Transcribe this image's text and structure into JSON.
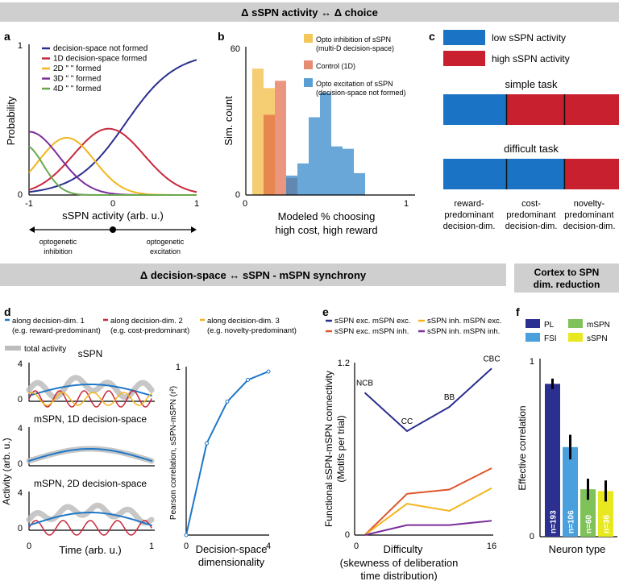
{
  "banners": {
    "top": "Δ sSPN activity ↔ Δ choice",
    "middle": "Δ decision-space ↔  sSPN - mSPN synchrony",
    "right": [
      "Cortex to SPN",
      "dim. reduction"
    ]
  },
  "colors": {
    "banner": "#cfcfcf",
    "navy": "#2b2f8f",
    "red": "#c8283c",
    "yellow": "#f2b51e",
    "purple": "#7b2e9c",
    "green": "#6aa84f",
    "blue": "#1f78c8",
    "orange": "#e0552a",
    "gray": "#bdbdbd",
    "lowBlue": "#1a73c4",
    "highRed": "#c8202f",
    "light_blue": "#4aa0dc",
    "f_green": "#7fc25a",
    "f_yellow": "#e8e820"
  },
  "panel_labels": [
    "a",
    "b",
    "c",
    "d",
    "e",
    "f"
  ],
  "panel_a": {
    "ylabel": "Probability",
    "xlabel": "sSPN activity (arb. u.)",
    "xticks": [
      "-1",
      "0",
      "1"
    ],
    "yticks": [
      "0",
      "1"
    ],
    "legend": [
      {
        "text": "decision-space not formed",
        "color": "navy"
      },
      {
        "text": "1D decision-space formed",
        "color": "red"
      },
      {
        "text": "2D    \"    \"    formed",
        "color": "yellow"
      },
      {
        "text": "3D    \"    \"    formed",
        "color": "purple"
      },
      {
        "text": "4D    \"    \"    formed",
        "color": "green"
      }
    ],
    "arrow_left": [
      "optogenetic",
      "inhibition"
    ],
    "arrow_right": [
      "optogenetic",
      "excitation"
    ]
  },
  "chart_data": [
    {
      "panel": "a",
      "type": "line",
      "xlabel": "sSPN activity (arb. u.)",
      "ylabel": "Probability",
      "xlim": [
        -1,
        1
      ],
      "ylim": [
        0,
        1
      ],
      "series": [
        {
          "name": "decision-space not formed",
          "kind": "sigmoid",
          "center": 0.15,
          "width": 0.3,
          "peak": 0.95
        },
        {
          "name": "1D decision-space formed",
          "kind": "gaussian",
          "center": -0.05,
          "sigma": 0.42,
          "peak": 0.44
        },
        {
          "name": "2D decision-space formed",
          "kind": "gaussian",
          "center": -0.55,
          "sigma": 0.33,
          "peak": 0.38
        },
        {
          "name": "3D decision-space formed",
          "kind": "gaussian",
          "center": -1.0,
          "sigma": 0.36,
          "peak": 0.42
        },
        {
          "name": "4D decision-space formed",
          "kind": "gaussian",
          "center": -1.05,
          "sigma": 0.22,
          "peak": 0.33
        }
      ]
    },
    {
      "panel": "b",
      "type": "bar",
      "title": "",
      "xlabel": "Modeled % choosing high cost, high reward",
      "ylabel": "Sim. count",
      "xlim": [
        0,
        1
      ],
      "ylim": [
        0,
        60
      ],
      "bin_width": 0.07,
      "series": [
        {
          "name": "Opto inhibition of sSPN (multi-D decision-space)",
          "starts": [
            0.04,
            0.11
          ],
          "values": [
            52,
            44
          ]
        },
        {
          "name": "Control (1D)",
          "starts": [
            0.11,
            0.18,
            0.25
          ],
          "values": [
            33,
            47,
            7
          ]
        },
        {
          "name": "Opto excitation of sSPN (decision-space not formed)",
          "starts": [
            0.25,
            0.32,
            0.39,
            0.46,
            0.53,
            0.6,
            0.67
          ],
          "values": [
            8,
            13,
            32,
            42,
            20,
            19,
            9
          ]
        }
      ]
    },
    {
      "panel": "d_right",
      "type": "line",
      "xlabel": "Decision-space dimensionality",
      "ylabel": "Pearson correlation, sSPN-mSPN (r²)",
      "x": [
        0,
        1,
        2,
        3,
        4
      ],
      "values": [
        0.0,
        0.55,
        0.8,
        0.93,
        0.98
      ],
      "xlim": [
        0,
        4
      ],
      "ylim": [
        0,
        1
      ]
    },
    {
      "panel": "e",
      "type": "line",
      "xlabel": "Difficulty",
      "ylabel": "Functional sSPN-mSPN connectivity (Motifs per trial)",
      "categories": [
        "NCB",
        "CC",
        "BB",
        "CBC"
      ],
      "x": [
        1,
        6,
        11,
        16
      ],
      "xlim": [
        0,
        16
      ],
      "ylim": [
        0,
        1.2
      ],
      "series": [
        {
          "name": "sSPN exc. mSPN exc.",
          "values": [
            1.0,
            0.73,
            0.9,
            1.17
          ]
        },
        {
          "name": "sSPN exc. mSPN inh.",
          "values": [
            0.0,
            0.29,
            0.32,
            0.47
          ]
        },
        {
          "name": "sSPN inh. mSPN exc.",
          "values": [
            0.0,
            0.22,
            0.17,
            0.33
          ]
        },
        {
          "name": "sSPN inh. mSPN inh.",
          "values": [
            0.0,
            0.07,
            0.07,
            0.1
          ]
        }
      ]
    },
    {
      "panel": "f",
      "type": "bar",
      "xlabel": "Neuron type",
      "ylabel": "Effective correlation",
      "categories": [
        "PL",
        "FSI",
        "mSPN",
        "sSPN"
      ],
      "values": [
        0.87,
        0.51,
        0.27,
        0.26
      ],
      "errors": [
        0.03,
        0.07,
        0.06,
        0.06
      ],
      "bar_labels": [
        "n=193",
        "n=106",
        "n=60",
        "n=36"
      ],
      "ylim": [
        0,
        1
      ]
    }
  ],
  "panel_b": {
    "ylabel": "Sim. count",
    "xlabel": [
      "Modeled % choosing",
      "high cost, high reward"
    ],
    "xticks": [
      "0",
      "1"
    ],
    "ytick_top": "60",
    "ytick_bottom": "0",
    "legend": [
      {
        "lines": [
          "Opto inhibition of sSPN",
          "(multi-D decision-space)"
        ],
        "color": "#f3c659"
      },
      {
        "lines": [
          "Control (1D)"
        ],
        "color": "#e78c74"
      },
      {
        "lines": [
          "Opto excitation of sSPN",
          "(decision-space not formed)"
        ],
        "color": "#5a9fd4"
      }
    ]
  },
  "panel_c": {
    "legend_low": "low sSPN activity",
    "legend_high": "high sSPN activity",
    "simple_title": "simple task",
    "difficult_title": "difficult task",
    "simple_segments": [
      0.36,
      0.64
    ],
    "difficult_segments": [
      0.69,
      0.31
    ],
    "divider_positions": [
      0.36,
      0.69
    ],
    "bottom_labels": [
      [
        "reward-",
        "predominant",
        "decision-dim."
      ],
      [
        "cost-",
        "predominant",
        "decision-dim."
      ],
      [
        "novelty-",
        "predominant",
        "decision-dim."
      ]
    ]
  },
  "panel_d": {
    "legend": [
      {
        "lines": [
          "along decision-dim. 1",
          "(e.g. reward-predominant)"
        ],
        "color": "blue"
      },
      {
        "lines": [
          "along decision-dim. 2",
          "(e.g. cost-predominant)"
        ],
        "color": "red"
      },
      {
        "lines": [
          "along decision-dim. 3",
          "(e.g. novelty-predominant)"
        ],
        "color": "yellow"
      }
    ],
    "total": "total activity",
    "sub_titles": [
      "sSPN",
      "mSPN, 1D decision-space",
      "mSPN, 2D decision-space"
    ],
    "ytick_top": "4",
    "ytick_bottom": "0",
    "ylabel": "Activity (arb. u.)",
    "xlabel": "Time (arb. u.)",
    "xticks": [
      "0",
      "1"
    ],
    "right": {
      "ylabel": "Pearson correlation, sSPN-mSPN (r²)",
      "xlabel": [
        "Decision-space",
        "dimensionality"
      ],
      "xticks": [
        "0",
        "4"
      ],
      "ytick": "1"
    }
  },
  "panel_e": {
    "legend": [
      {
        "text": "sSPN exc. mSPN exc.",
        "color": "navy"
      },
      {
        "text": "sSPN inh. mSPN exc.",
        "color": "yellow"
      },
      {
        "text": "sSPN exc. mSPN inh.",
        "color": "orange"
      },
      {
        "text": "sSPN inh. mSPN inh.",
        "color": "purple"
      }
    ],
    "ylabel": [
      "Functional sSPN-mSPN connectivity",
      "(Motifs per trial)"
    ],
    "xlabel": [
      "Difficulty",
      "(skewness of deliberation",
      "time distribution)"
    ],
    "yticks": [
      "0",
      "1.2"
    ],
    "xticks": [
      "0",
      "16"
    ]
  },
  "panel_f": {
    "legend": [
      {
        "text": "PL",
        "color": "navy"
      },
      {
        "text": "mSPN",
        "color": "f_green"
      },
      {
        "text": "FSI",
        "color": "light_blue"
      },
      {
        "text": "sSPN",
        "color": "f_yellow"
      }
    ],
    "ylabel": "Effective correlation",
    "xlabel": "Neuron type",
    "yticks": [
      "0",
      "1"
    ]
  }
}
